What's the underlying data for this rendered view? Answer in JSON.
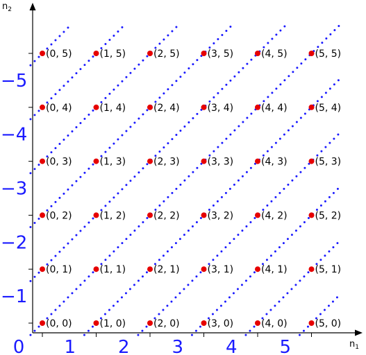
{
  "axes": {
    "x_label": "n",
    "x_subscript": "1",
    "y_label": "n",
    "y_subscript": "2"
  },
  "colors": {
    "point": "#e60000",
    "diagonal": "#1a1aff",
    "axis": "#000000",
    "number": "#1a1aff"
  },
  "points": [
    [
      0,
      0
    ],
    [
      1,
      0
    ],
    [
      2,
      0
    ],
    [
      3,
      0
    ],
    [
      4,
      0
    ],
    [
      5,
      0
    ],
    [
      0,
      1
    ],
    [
      1,
      1
    ],
    [
      2,
      1
    ],
    [
      3,
      1
    ],
    [
      4,
      1
    ],
    [
      5,
      1
    ],
    [
      0,
      2
    ],
    [
      1,
      2
    ],
    [
      2,
      2
    ],
    [
      3,
      2
    ],
    [
      4,
      2
    ],
    [
      5,
      2
    ],
    [
      0,
      3
    ],
    [
      1,
      3
    ],
    [
      2,
      3
    ],
    [
      3,
      3
    ],
    [
      4,
      3
    ],
    [
      5,
      3
    ],
    [
      0,
      4
    ],
    [
      1,
      4
    ],
    [
      2,
      4
    ],
    [
      3,
      4
    ],
    [
      4,
      4
    ],
    [
      5,
      4
    ],
    [
      0,
      5
    ],
    [
      1,
      5
    ],
    [
      2,
      5
    ],
    [
      3,
      5
    ],
    [
      4,
      5
    ],
    [
      5,
      5
    ]
  ],
  "point_labels": [
    "(0, 0)",
    "(1, 0)",
    "(2, 0)",
    "(3, 0)",
    "(4, 0)",
    "(5, 0)",
    "(0, 1)",
    "(1, 1)",
    "(2, 1)",
    "(3, 1)",
    "(4, 1)",
    "(5, 1)",
    "(0, 2)",
    "(1, 2)",
    "(2, 2)",
    "(3, 2)",
    "(4, 2)",
    "(5, 2)",
    "(0, 3)",
    "(1, 3)",
    "(2, 3)",
    "(3, 3)",
    "(4, 3)",
    "(5, 3)",
    "(0, 4)",
    "(1, 4)",
    "(2, 4)",
    "(3, 4)",
    "(4, 4)",
    "(5, 4)",
    "(0, 5)",
    "(1, 5)",
    "(2, 5)",
    "(3, 5)",
    "(4, 5)",
    "(5, 5)"
  ],
  "diagonal_offsets": [
    -5,
    -4,
    -3,
    -2,
    -1,
    0,
    1,
    2,
    3,
    4,
    5
  ],
  "x_numbers": [
    "0",
    "1",
    "2",
    "3",
    "4",
    "5"
  ],
  "y_numbers": [
    "−1",
    "−2",
    "−3",
    "−4",
    "−5"
  ]
}
